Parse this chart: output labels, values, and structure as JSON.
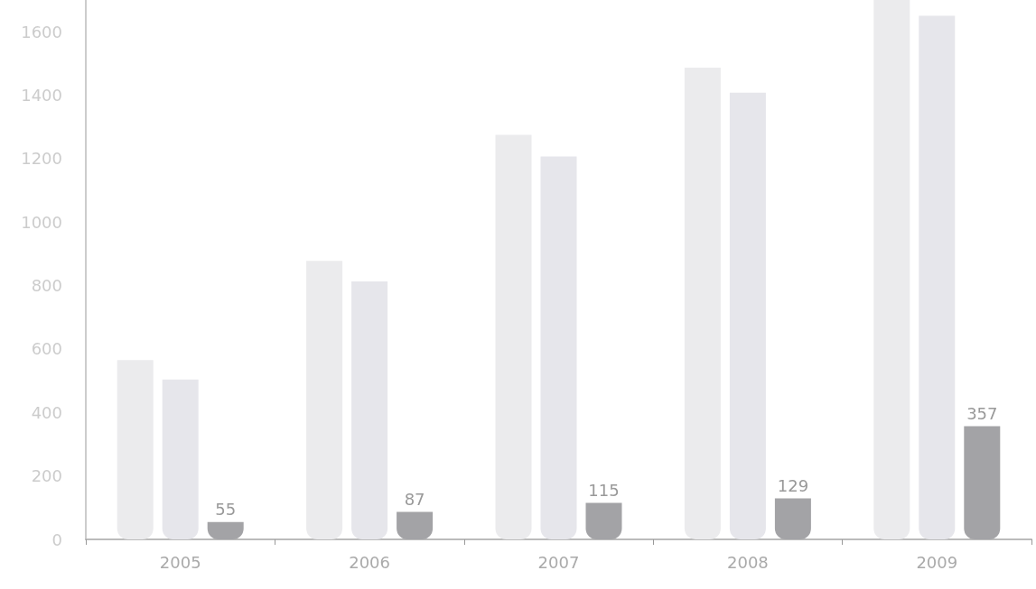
{
  "chart_data": {
    "type": "bar",
    "categories": [
      "2005",
      "2006",
      "2007",
      "2008",
      "2009"
    ],
    "series": [
      {
        "color": "#ebebed",
        "values": [
          565,
          878,
          1275,
          1487,
          1700
        ]
      },
      {
        "color": "#e6e6eb",
        "values": [
          504,
          813,
          1207,
          1408,
          1650
        ]
      },
      {
        "color": "#a3a3a6",
        "values": [
          55,
          87,
          115,
          129,
          357
        ],
        "value_labels": [
          "55",
          "87",
          "115",
          "129",
          "357"
        ]
      }
    ],
    "ylim": [
      0,
      1700
    ],
    "yticks": [
      0,
      200,
      400,
      600,
      800,
      1000,
      1200,
      1400,
      1600
    ],
    "grid": false
  }
}
